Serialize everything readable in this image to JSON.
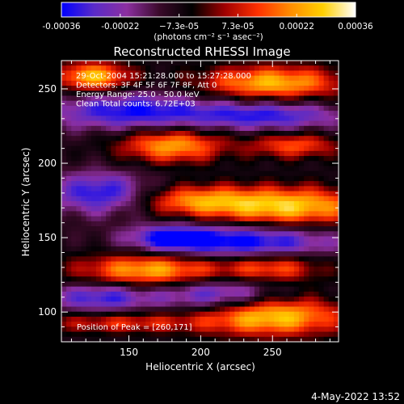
{
  "colorbar": {
    "ticks": [
      "-0.00036",
      "-0.00022",
      "−7.3e-05",
      "7.3e-05",
      "0.00022",
      "0.00036"
    ],
    "unit_label": "(photons cm⁻² s⁻¹ asec⁻²)",
    "colors": [
      "#0000ff",
      "#5a2bc8",
      "#8c2fa0",
      "#3a0a2a",
      "#000000",
      "#a00000",
      "#ff3000",
      "#ff8c00",
      "#ffd000",
      "#ffffff"
    ]
  },
  "chart_data": {
    "type": "heatmap",
    "title": "Reconstructed RHESSI Image",
    "xlabel": "Heliocentric X (arcsec)",
    "ylabel": "Heliocentric Y (arcsec)",
    "xlim": [
      103,
      296
    ],
    "ylim": [
      80,
      269
    ],
    "zlim": [
      -0.00036,
      0.00036
    ],
    "x_ticks": [
      150,
      200,
      250
    ],
    "y_ticks": [
      100,
      150,
      200,
      250
    ],
    "info_lines": [
      "29-Oct-2004 15:21:28.000 to 15:27:28.000",
      "Detectors: 3F 4F 5F 6F 7F 8F, Att 0",
      "Energy Range: 25.0 - 50.0 keV",
      "Clean     Total counts: 6.72E+03"
    ],
    "peak_label": "Position of Peak = [260,171]",
    "peak": [
      260,
      171
    ],
    "sources": [
      {
        "x": 125,
        "y": 258,
        "sx": 18,
        "sy": 7,
        "a": 0.00034
      },
      {
        "x": 250,
        "y": 254,
        "sx": 35,
        "sy": 8,
        "a": 0.00033
      },
      {
        "x": 180,
        "y": 212,
        "sx": 25,
        "sy": 8,
        "a": 0.00031
      },
      {
        "x": 265,
        "y": 212,
        "sx": 22,
        "sy": 6,
        "a": 0.00022
      },
      {
        "x": 260,
        "y": 171,
        "sx": 40,
        "sy": 9,
        "a": 0.00036
      },
      {
        "x": 195,
        "y": 175,
        "sx": 28,
        "sy": 7,
        "a": 0.00023
      },
      {
        "x": 165,
        "y": 128,
        "sx": 35,
        "sy": 8,
        "a": 0.00033
      },
      {
        "x": 250,
        "y": 130,
        "sx": 25,
        "sy": 7,
        "a": 0.00023
      },
      {
        "x": 250,
        "y": 97,
        "sx": 35,
        "sy": 9,
        "a": 0.00036
      },
      {
        "x": 145,
        "y": 93,
        "sx": 40,
        "sy": 5,
        "a": 0.00018
      },
      {
        "x": 150,
        "y": 235,
        "sx": 40,
        "sy": 9,
        "a": -0.00026
      },
      {
        "x": 245,
        "y": 232,
        "sx": 40,
        "sy": 7,
        "a": -0.00024
      },
      {
        "x": 130,
        "y": 180,
        "sx": 25,
        "sy": 10,
        "a": -0.00026
      },
      {
        "x": 230,
        "y": 147,
        "sx": 45,
        "sy": 8,
        "a": -0.0003
      },
      {
        "x": 180,
        "y": 150,
        "sx": 20,
        "sy": 6,
        "a": -0.00022
      },
      {
        "x": 130,
        "y": 110,
        "sx": 25,
        "sy": 7,
        "a": -0.00024
      },
      {
        "x": 210,
        "y": 112,
        "sx": 30,
        "sy": 8,
        "a": -0.00024
      }
    ]
  },
  "footer": {
    "date": "4-May-2022 13:52"
  }
}
